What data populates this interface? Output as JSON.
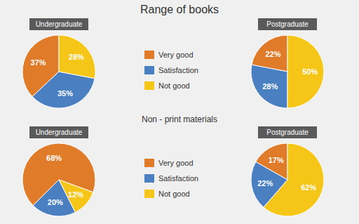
{
  "chart_data": [
    {
      "type": "pie",
      "title": "Range of books",
      "subtitle": "Undergraduate",
      "categories": [
        "Very good",
        "Satisfaction",
        "Not good"
      ],
      "values": [
        37,
        35,
        28
      ],
      "value_labels": [
        "37%",
        "35%",
        "28%"
      ],
      "colors": [
        "#E07B2A",
        "#4A7FC1",
        "#F5C518"
      ],
      "data_labels": true,
      "legend": "right"
    },
    {
      "type": "pie",
      "subtitle": "Postgraduate",
      "categories": [
        "Very good",
        "Satisfaction",
        "Not good"
      ],
      "values": [
        22,
        28,
        50
      ],
      "value_labels": [
        "22%",
        "28%",
        "50%"
      ],
      "colors": [
        "#E07B2A",
        "#4A7FC1",
        "#F5C518"
      ],
      "data_labels": true
    },
    {
      "type": "pie",
      "title": "Non - print materials",
      "subtitle": "Undergraduate",
      "categories": [
        "Very good",
        "Satisfaction",
        "Not good"
      ],
      "values": [
        68,
        20,
        12
      ],
      "value_labels": [
        "68%",
        "20%",
        "12%"
      ],
      "colors": [
        "#E07B2A",
        "#4A7FC1",
        "#F5C518"
      ],
      "data_labels": true,
      "legend": "right"
    },
    {
      "type": "pie",
      "subtitle": "Postgraduate",
      "categories": [
        "Very good",
        "Satisfaction",
        "Not good"
      ],
      "values": [
        17,
        22,
        62
      ],
      "value_labels": [
        "17%",
        "22%",
        "62%"
      ],
      "colors": [
        "#E07B2A",
        "#4A7FC1",
        "#F5C518"
      ],
      "data_labels": true
    }
  ]
}
